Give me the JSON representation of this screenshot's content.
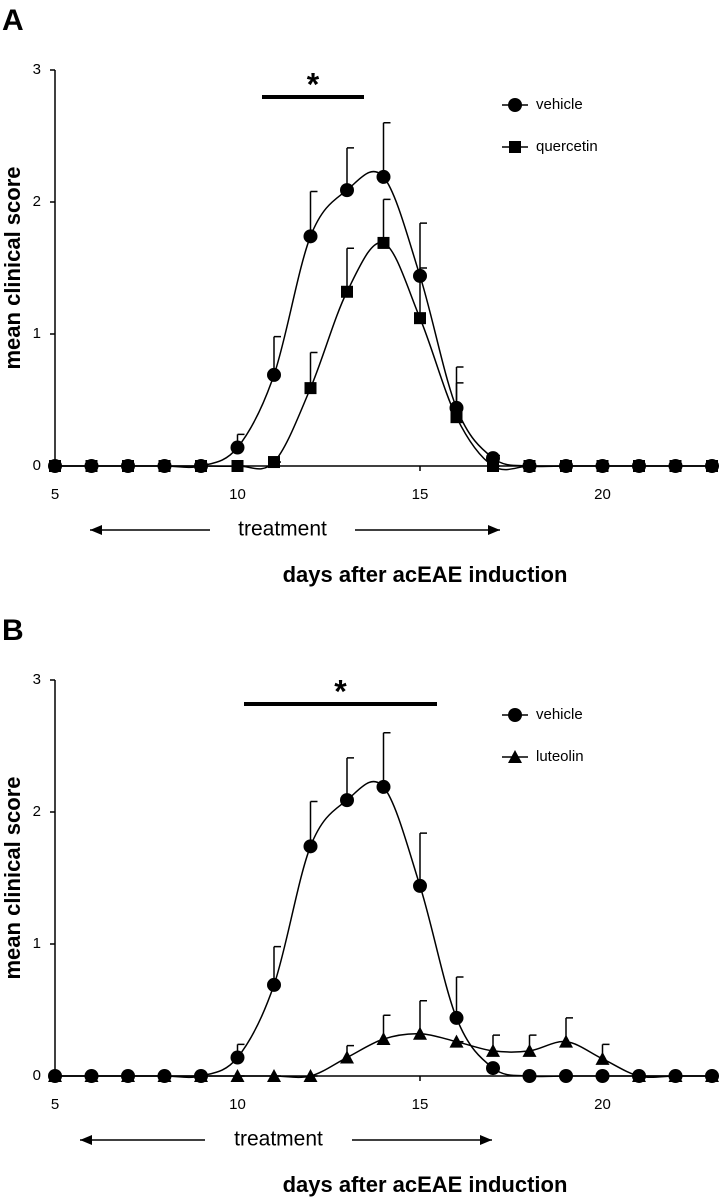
{
  "chart_data": [
    {
      "type": "line",
      "panel_label": "A",
      "ylabel": "mean clinical score",
      "xlabel": "days after acEAE induction",
      "annotation": "treatment",
      "significance": "*",
      "x": [
        5,
        6,
        7,
        8,
        9,
        10,
        11,
        12,
        13,
        14,
        15,
        16,
        17,
        18,
        19,
        20,
        21,
        22,
        23
      ],
      "xlim": [
        5,
        23
      ],
      "ylim": [
        0,
        3
      ],
      "xticks": [
        5,
        10,
        15,
        20
      ],
      "yticks": [
        0,
        1,
        2,
        3
      ],
      "series": [
        {
          "name": "vehicle",
          "color": "#000000",
          "marker": "circle",
          "values": [
            0,
            0,
            0,
            0,
            0,
            0.14,
            0.69,
            1.74,
            2.09,
            2.19,
            1.44,
            0.44,
            0.06,
            0,
            0,
            0,
            0,
            0,
            0
          ],
          "errors": [
            0,
            0,
            0,
            0,
            0,
            0.1,
            0.29,
            0.34,
            0.32,
            0.41,
            0.4,
            0.31,
            0.02,
            0,
            0,
            0,
            0,
            0,
            0
          ]
        },
        {
          "name": "quercetin",
          "color": "#000000",
          "marker": "square",
          "values": [
            0,
            0,
            0,
            0,
            0,
            0,
            0.03,
            0.59,
            1.32,
            1.69,
            1.12,
            0.37,
            0,
            0,
            0,
            0,
            0,
            0,
            0
          ],
          "errors": [
            0,
            0,
            0,
            0,
            0,
            0,
            0,
            0.27,
            0.33,
            0.33,
            0.38,
            0.26,
            0,
            0,
            0,
            0,
            0,
            0,
            0
          ]
        }
      ]
    },
    {
      "type": "line",
      "panel_label": "B",
      "ylabel": "mean clinical score",
      "xlabel": "days after acEAE induction",
      "annotation": "treatment",
      "significance": "*",
      "x": [
        5,
        6,
        7,
        8,
        9,
        10,
        11,
        12,
        13,
        14,
        15,
        16,
        17,
        18,
        19,
        20,
        21,
        22,
        23
      ],
      "xlim": [
        5,
        23
      ],
      "ylim": [
        0,
        3
      ],
      "xticks": [
        5,
        10,
        15,
        20
      ],
      "yticks": [
        0,
        1,
        2,
        3
      ],
      "series": [
        {
          "name": "vehicle",
          "color": "#000000",
          "marker": "circle",
          "values": [
            0,
            0,
            0,
            0,
            0,
            0.14,
            0.69,
            1.74,
            2.09,
            2.19,
            1.44,
            0.44,
            0.06,
            0,
            0,
            0,
            0,
            0,
            0
          ],
          "errors": [
            0,
            0,
            0,
            0,
            0,
            0.1,
            0.29,
            0.34,
            0.32,
            0.41,
            0.4,
            0.31,
            0,
            0,
            0,
            0,
            0,
            0,
            0
          ]
        },
        {
          "name": "luteolin",
          "color": "#000000",
          "marker": "triangle",
          "values": [
            0,
            0,
            0,
            0,
            0,
            0,
            0,
            0,
            0.14,
            0.28,
            0.32,
            0.26,
            0.19,
            0.19,
            0.26,
            0.13,
            0,
            0,
            0
          ],
          "errors": [
            0,
            0,
            0,
            0,
            0,
            0,
            0,
            0,
            0.09,
            0.18,
            0.25,
            0,
            0.12,
            0.12,
            0.18,
            0.11,
            0,
            0,
            0
          ]
        }
      ]
    }
  ]
}
